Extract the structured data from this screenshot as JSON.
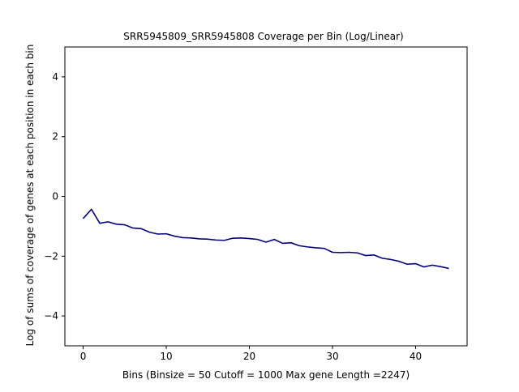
{
  "chart_data": {
    "type": "line",
    "title": "SRR5945809_SRR5945808 Coverage per Bin (Log/Linear)",
    "xlabel": "Bins  (Binsize = 50 Cutoff = 1000 Max gene Length =2247)",
    "ylabel": "Log of sums of coverage of genes at each position in each bin",
    "xlim": [
      -2.2,
      46.2
    ],
    "ylim": [
      -5,
      5
    ],
    "xticks": [
      0,
      10,
      20,
      30,
      40
    ],
    "yticks": [
      -4,
      -2,
      0,
      2,
      4
    ],
    "grid": false,
    "series": [
      {
        "color": "#000080",
        "x": [
          0,
          1,
          2,
          3,
          4,
          5,
          6,
          7,
          8,
          9,
          10,
          11,
          12,
          13,
          14,
          15,
          16,
          17,
          18,
          19,
          20,
          21,
          22,
          23,
          24,
          25,
          26,
          27,
          28,
          29,
          30,
          31,
          32,
          33,
          34,
          35,
          36,
          37,
          38,
          39,
          40,
          41,
          42,
          43,
          44
        ],
        "y": [
          -0.74,
          -0.43,
          -0.9,
          -0.85,
          -0.93,
          -0.95,
          -1.06,
          -1.08,
          -1.2,
          -1.26,
          -1.25,
          -1.33,
          -1.38,
          -1.39,
          -1.42,
          -1.43,
          -1.46,
          -1.47,
          -1.4,
          -1.39,
          -1.41,
          -1.44,
          -1.53,
          -1.44,
          -1.57,
          -1.55,
          -1.65,
          -1.69,
          -1.72,
          -1.74,
          -1.87,
          -1.88,
          -1.87,
          -1.89,
          -1.98,
          -1.96,
          -2.07,
          -2.11,
          -2.17,
          -2.27,
          -2.25,
          -2.36,
          -2.3,
          -2.35,
          -2.41
        ]
      }
    ]
  }
}
